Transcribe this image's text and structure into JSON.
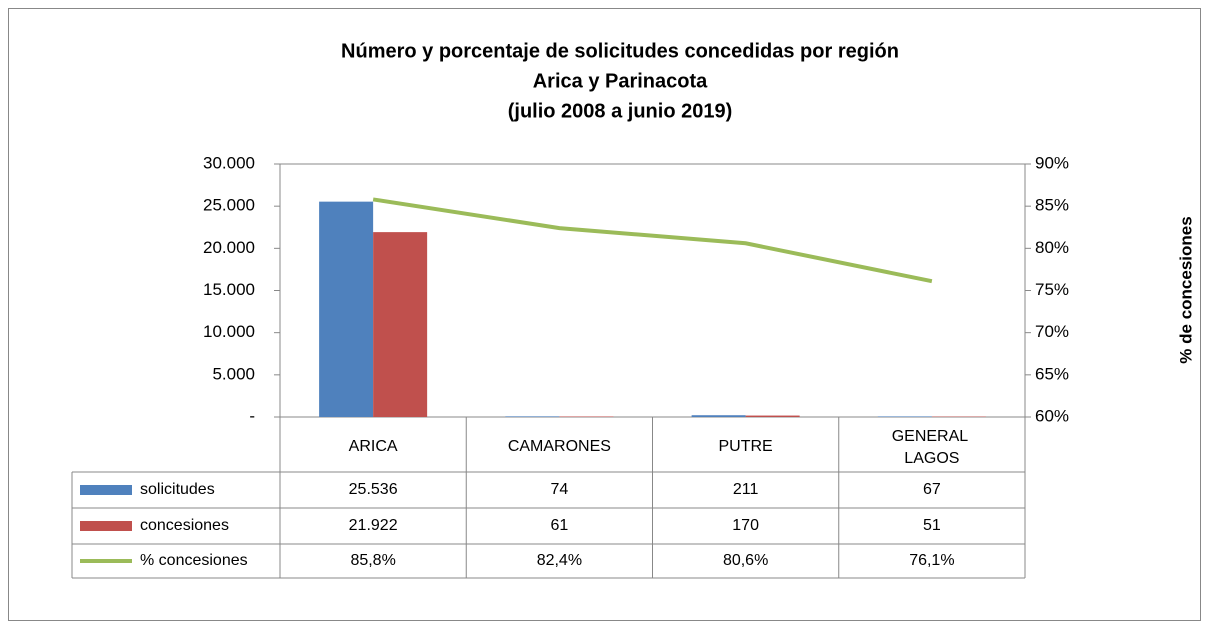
{
  "chart_data": {
    "type": "bar",
    "title": [
      "Número y porcentaje de solicitudes concedidas por región",
      "Arica y Parinacota",
      "(julio 2008 a junio 2019)"
    ],
    "y2_label": "% de concesiones",
    "categories": [
      "ARICA",
      "CAMARONES",
      "PUTRE",
      "GENERAL LAGOS"
    ],
    "series": [
      {
        "name": "solicitudes",
        "type": "bar",
        "color": "#4f81bd",
        "values": [
          25536,
          74,
          211,
          67
        ],
        "value_labels": [
          "25.536",
          "74",
          "211",
          "67"
        ]
      },
      {
        "name": "concesiones",
        "type": "bar",
        "color": "#c0504d",
        "values": [
          21922,
          61,
          170,
          51
        ],
        "value_labels": [
          "21.922",
          "61",
          "170",
          "51"
        ]
      },
      {
        "name": "% concesiones",
        "type": "line",
        "axis": "y2",
        "color": "#9bbb59",
        "values": [
          85.8,
          82.4,
          80.6,
          76.1
        ],
        "value_labels": [
          "85,8%",
          "82,4%",
          "80,6%",
          "76,1%"
        ]
      }
    ],
    "ylim": [
      0,
      30000
    ],
    "yticks": [
      {
        "value": 0,
        "label": "-"
      },
      {
        "value": 5000,
        "label": "5.000"
      },
      {
        "value": 10000,
        "label": "10.000"
      },
      {
        "value": 15000,
        "label": "15.000"
      },
      {
        "value": 20000,
        "label": "20.000"
      },
      {
        "value": 25000,
        "label": "25.000"
      },
      {
        "value": 30000,
        "label": "30.000"
      }
    ],
    "y2lim": [
      60,
      90
    ],
    "y2ticks": [
      {
        "value": 60,
        "label": "60%"
      },
      {
        "value": 65,
        "label": "65%"
      },
      {
        "value": 70,
        "label": "70%"
      },
      {
        "value": 75,
        "label": "75%"
      },
      {
        "value": 80,
        "label": "80%"
      },
      {
        "value": 85,
        "label": "85%"
      },
      {
        "value": 90,
        "label": "90%"
      }
    ],
    "data_table": true
  }
}
